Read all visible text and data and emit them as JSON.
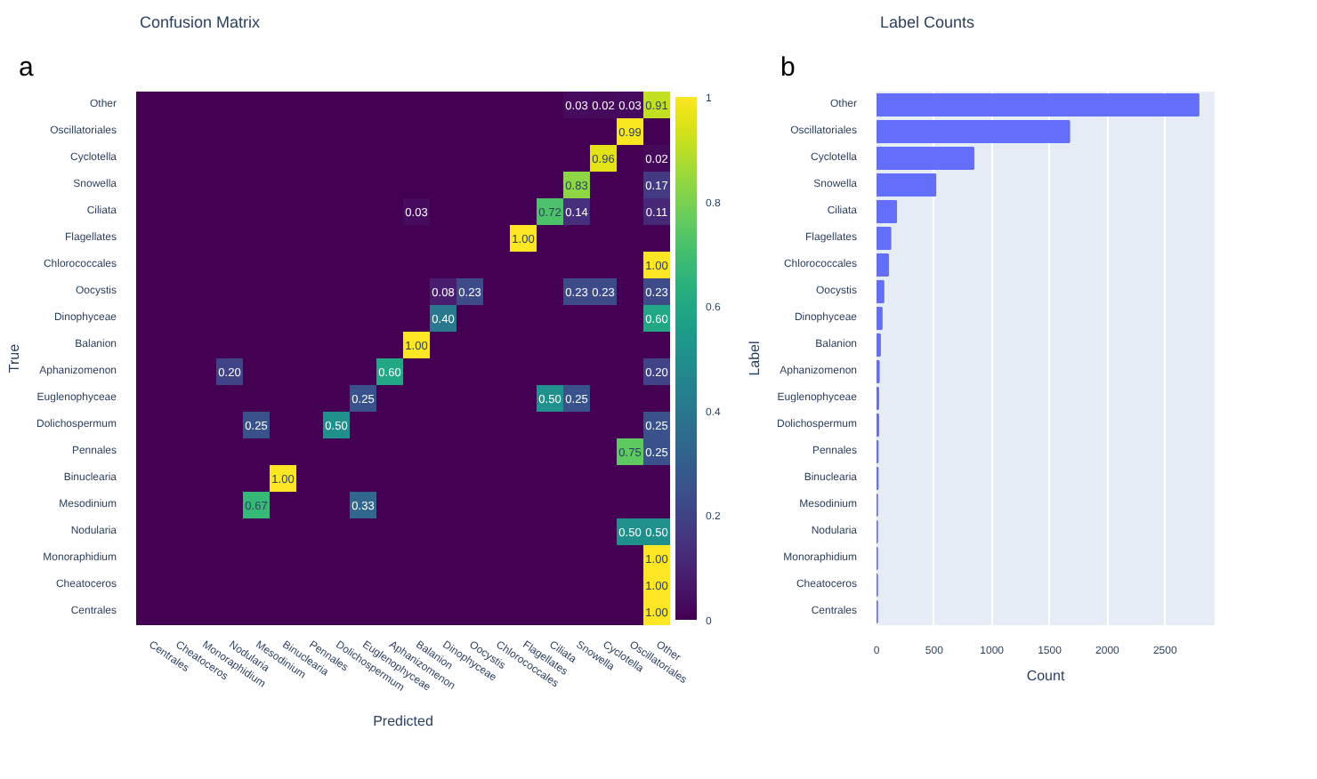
{
  "chart_data": [
    {
      "type": "heatmap",
      "title": "Confusion Matrix",
      "xlabel": "Predicted",
      "ylabel": "True",
      "annotations": [
        "a"
      ],
      "categories": [
        "Centrales",
        "Cheatoceros",
        "Monoraphidium",
        "Nodularia",
        "Mesodinium",
        "Binuclearia",
        "Pennales",
        "Dolichospermum",
        "Euglenophyceae",
        "Aphanizomenon",
        "Balanion",
        "Dinophyceae",
        "Oocystis",
        "Chlorococcales",
        "Flagellates",
        "Ciliata",
        "Snowella",
        "Cyclotella",
        "Oscillatoriales",
        "Other"
      ],
      "y_categories": [
        "Other",
        "Oscillatoriales",
        "Cyclotella",
        "Snowella",
        "Ciliata",
        "Flagellates",
        "Chlorococcales",
        "Oocystis",
        "Dinophyceae",
        "Balanion",
        "Aphanizomenon",
        "Euglenophyceae",
        "Dolichospermum",
        "Pennales",
        "Binuclearia",
        "Mesodinium",
        "Nodularia",
        "Monoraphidium",
        "Cheatoceros",
        "Centrales"
      ],
      "cells": [
        [
          0,
          0,
          0,
          0,
          0,
          0,
          0,
          0,
          0,
          0,
          0,
          0,
          0,
          0,
          0,
          0,
          0.03,
          0.02,
          0.03,
          0.91
        ],
        [
          0,
          0,
          0,
          0,
          0,
          0,
          0,
          0,
          0,
          0,
          0,
          0,
          0,
          0,
          0,
          0,
          0,
          0,
          0.99,
          0
        ],
        [
          0,
          0,
          0,
          0,
          0,
          0,
          0,
          0,
          0,
          0,
          0,
          0,
          0,
          0,
          0,
          0,
          0,
          0.96,
          0,
          0.02
        ],
        [
          0,
          0,
          0,
          0,
          0,
          0,
          0,
          0,
          0,
          0,
          0,
          0,
          0,
          0,
          0,
          0,
          0.83,
          0,
          0,
          0.17
        ],
        [
          0,
          0,
          0,
          0,
          0,
          0,
          0,
          0,
          0,
          0,
          0.03,
          0,
          0,
          0,
          0,
          0.72,
          0.14,
          0,
          0,
          0.11
        ],
        [
          0,
          0,
          0,
          0,
          0,
          0,
          0,
          0,
          0,
          0,
          0,
          0,
          0,
          0,
          1,
          0,
          0,
          0,
          0,
          0
        ],
        [
          0,
          0,
          0,
          0,
          0,
          0,
          0,
          0,
          0,
          0,
          0,
          0,
          0,
          0,
          0,
          0,
          0,
          0,
          0,
          1
        ],
        [
          0,
          0,
          0,
          0,
          0,
          0,
          0,
          0,
          0,
          0,
          0,
          0.08,
          0.23,
          0,
          0,
          0,
          0.23,
          0.23,
          0,
          0.23
        ],
        [
          0,
          0,
          0,
          0,
          0,
          0,
          0,
          0,
          0,
          0,
          0,
          0.4,
          0,
          0,
          0,
          0,
          0,
          0,
          0,
          0.6
        ],
        [
          0,
          0,
          0,
          0,
          0,
          0,
          0,
          0,
          0,
          0,
          1,
          0,
          0,
          0,
          0,
          0,
          0,
          0,
          0,
          0
        ],
        [
          0,
          0,
          0,
          0.2,
          0,
          0,
          0,
          0,
          0,
          0.6,
          0,
          0,
          0,
          0,
          0,
          0,
          0,
          0,
          0,
          0.2
        ],
        [
          0,
          0,
          0,
          0,
          0,
          0,
          0,
          0,
          0.25,
          0,
          0,
          0,
          0,
          0,
          0,
          0.5,
          0.25,
          0,
          0,
          0
        ],
        [
          0,
          0,
          0,
          0,
          0.25,
          0,
          0,
          0.5,
          0,
          0,
          0,
          0,
          0,
          0,
          0,
          0,
          0,
          0,
          0,
          0.25
        ],
        [
          0,
          0,
          0,
          0,
          0,
          0,
          0,
          0,
          0,
          0,
          0,
          0,
          0,
          0,
          0,
          0,
          0,
          0,
          0.75,
          0.25
        ],
        [
          0,
          0,
          0,
          0,
          0,
          1,
          0,
          0,
          0,
          0,
          0,
          0,
          0,
          0,
          0,
          0,
          0,
          0,
          0,
          0
        ],
        [
          0,
          0,
          0,
          0,
          0.67,
          0,
          0,
          0,
          0.33,
          0,
          0,
          0,
          0,
          0,
          0,
          0,
          0,
          0,
          0,
          0
        ],
        [
          0,
          0,
          0,
          0,
          0,
          0,
          0,
          0,
          0,
          0,
          0,
          0,
          0,
          0,
          0,
          0,
          0,
          0,
          0.5,
          0.5
        ],
        [
          0,
          0,
          0,
          0,
          0,
          0,
          0,
          0,
          0,
          0,
          0,
          0,
          0,
          0,
          0,
          0,
          0,
          0,
          0,
          1
        ],
        [
          0,
          0,
          0,
          0,
          0,
          0,
          0,
          0,
          0,
          0,
          0,
          0,
          0,
          0,
          0,
          0,
          0,
          0,
          0,
          1
        ],
        [
          0,
          0,
          0,
          0,
          0,
          0,
          0,
          0,
          0,
          0,
          0,
          0,
          0,
          0,
          0,
          0,
          0,
          0,
          0,
          1
        ]
      ],
      "cell_labels": [
        [
          null,
          null,
          null,
          null,
          null,
          null,
          null,
          null,
          null,
          null,
          null,
          null,
          null,
          null,
          null,
          null,
          "0.03",
          "0.02",
          "0.03",
          "0.91"
        ],
        [
          null,
          null,
          null,
          null,
          null,
          null,
          null,
          null,
          null,
          null,
          null,
          null,
          null,
          null,
          null,
          null,
          null,
          null,
          "0.99",
          null
        ],
        [
          null,
          null,
          null,
          null,
          null,
          null,
          null,
          null,
          null,
          null,
          null,
          null,
          null,
          null,
          null,
          null,
          null,
          "0.96",
          null,
          "0.02"
        ],
        [
          null,
          null,
          null,
          null,
          null,
          null,
          null,
          null,
          null,
          null,
          null,
          null,
          null,
          null,
          null,
          null,
          "0.83",
          null,
          null,
          "0.17"
        ],
        [
          null,
          null,
          null,
          null,
          null,
          null,
          null,
          null,
          null,
          null,
          "0.03",
          null,
          null,
          null,
          null,
          "0.72",
          "0.14",
          null,
          null,
          "0.11"
        ],
        [
          null,
          null,
          null,
          null,
          null,
          null,
          null,
          null,
          null,
          null,
          null,
          null,
          null,
          null,
          "1.00",
          null,
          null,
          null,
          null,
          null
        ],
        [
          null,
          null,
          null,
          null,
          null,
          null,
          null,
          null,
          null,
          null,
          null,
          null,
          null,
          null,
          null,
          null,
          null,
          null,
          null,
          "1.00"
        ],
        [
          null,
          null,
          null,
          null,
          null,
          null,
          null,
          null,
          null,
          null,
          null,
          "0.08",
          "0.23",
          null,
          null,
          null,
          "0.23",
          "0.23",
          null,
          "0.23"
        ],
        [
          null,
          null,
          null,
          null,
          null,
          null,
          null,
          null,
          null,
          null,
          null,
          "0.40",
          null,
          null,
          null,
          null,
          null,
          null,
          null,
          "0.60"
        ],
        [
          null,
          null,
          null,
          null,
          null,
          null,
          null,
          null,
          null,
          null,
          "1.00",
          null,
          null,
          null,
          null,
          null,
          null,
          null,
          null,
          null
        ],
        [
          null,
          null,
          null,
          "0.20",
          null,
          null,
          null,
          null,
          null,
          "0.60",
          null,
          null,
          null,
          null,
          null,
          null,
          null,
          null,
          null,
          "0.20"
        ],
        [
          null,
          null,
          null,
          null,
          null,
          null,
          null,
          null,
          "0.25",
          null,
          null,
          null,
          null,
          null,
          null,
          "0.50",
          "0.25",
          null,
          null,
          null
        ],
        [
          null,
          null,
          null,
          null,
          "0.25",
          null,
          null,
          "0.50",
          null,
          null,
          null,
          null,
          null,
          null,
          null,
          null,
          null,
          null,
          null,
          "0.25"
        ],
        [
          null,
          null,
          null,
          null,
          null,
          null,
          null,
          null,
          null,
          null,
          null,
          null,
          null,
          null,
          null,
          null,
          null,
          null,
          "0.75",
          "0.25"
        ],
        [
          null,
          null,
          null,
          null,
          null,
          "1.00",
          null,
          null,
          null,
          null,
          null,
          null,
          null,
          null,
          null,
          null,
          null,
          null,
          null,
          null
        ],
        [
          null,
          null,
          null,
          null,
          "0.67",
          null,
          null,
          null,
          "0.33",
          null,
          null,
          null,
          null,
          null,
          null,
          null,
          null,
          null,
          null,
          null
        ],
        [
          null,
          null,
          null,
          null,
          null,
          null,
          null,
          null,
          null,
          null,
          null,
          null,
          null,
          null,
          null,
          null,
          null,
          null,
          "0.50",
          "0.50"
        ],
        [
          null,
          null,
          null,
          null,
          null,
          null,
          null,
          null,
          null,
          null,
          null,
          null,
          null,
          null,
          null,
          null,
          null,
          null,
          null,
          "1.00"
        ],
        [
          null,
          null,
          null,
          null,
          null,
          null,
          null,
          null,
          null,
          null,
          null,
          null,
          null,
          null,
          null,
          null,
          null,
          null,
          null,
          "1.00"
        ],
        [
          null,
          null,
          null,
          null,
          null,
          null,
          null,
          null,
          null,
          null,
          null,
          null,
          null,
          null,
          null,
          null,
          null,
          null,
          null,
          "1.00"
        ]
      ],
      "clim": [
        0,
        1
      ],
      "cticks": [
        0,
        0.2,
        0.4,
        0.6,
        0.8,
        1
      ],
      "grid": false
    },
    {
      "type": "bar",
      "orientation": "horizontal",
      "title": "Label Counts",
      "xlabel": "Count",
      "ylabel": "Label",
      "annotations": [
        "b"
      ],
      "categories": [
        "Other",
        "Oscillatoriales",
        "Cyclotella",
        "Snowella",
        "Ciliata",
        "Flagellates",
        "Chlorococcales",
        "Oocystis",
        "Dinophyceae",
        "Balanion",
        "Aphanizomenon",
        "Euglenophyceae",
        "Dolichospermum",
        "Pennales",
        "Binuclearia",
        "Mesodinium",
        "Nodularia",
        "Monoraphidium",
        "Cheatoceros",
        "Centrales"
      ],
      "values": [
        2790,
        1670,
        840,
        510,
        170,
        120,
        100,
        60,
        45,
        30,
        20,
        15,
        15,
        10,
        10,
        5,
        5,
        5,
        5,
        5
      ],
      "color": "#636efa",
      "xlim": [
        0,
        2930
      ],
      "xticks": [
        0,
        500,
        1000,
        1500,
        2000,
        2500
      ],
      "grid": "x"
    }
  ]
}
